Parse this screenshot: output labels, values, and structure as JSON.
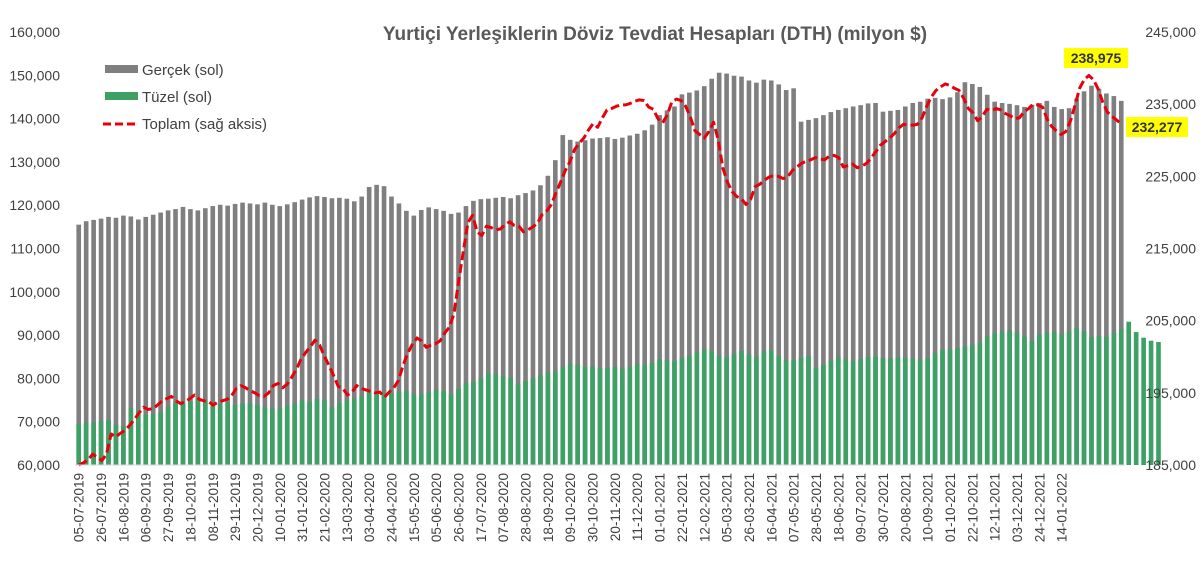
{
  "chart_data": {
    "type": "bar",
    "title": "Yurtiçi Yerleşiklerin Döviz Tevdiat Hesapları (DTH) (milyon $)",
    "y_left": {
      "ylim": [
        60000,
        160000
      ],
      "ticks": [
        "60,000",
        "70,000",
        "80,000",
        "90,000",
        "100,000",
        "110,000",
        "120,000",
        "130,000",
        "140,000",
        "150,000",
        "160,000"
      ]
    },
    "y_right": {
      "ylim": [
        185000,
        245000
      ],
      "ticks": [
        "185,000",
        "195,000",
        "205,000",
        "215,000",
        "225,000",
        "235,000",
        "245,000"
      ]
    },
    "x_tick_labels": [
      "05-07-2019",
      "26-07-2019",
      "16-08-2019",
      "06-09-2019",
      "27-09-2019",
      "18-10-2019",
      "08-11-2019",
      "29-11-2019",
      "20-12-2019",
      "10-01-2020",
      "31-01-2020",
      "21-02-2020",
      "13-03-2020",
      "03-04-2020",
      "24-04-2020",
      "15-05-2020",
      "05-06-2020",
      "26-06-2020",
      "17-07-2020",
      "07-08-2020",
      "28-08-2020",
      "18-09-2020",
      "09-10-2020",
      "30-10-2020",
      "20-11-2020",
      "11-12-2020",
      "01-01-2021",
      "22-01-2021",
      "12-02-2021",
      "05-03-2021",
      "26-03-2021",
      "16-04-2021",
      "07-05-2021",
      "28-05-2021",
      "18-06-2021",
      "09-07-2021",
      "30-07-2021",
      "20-08-2021",
      "10-09-2021",
      "01-10-2021",
      "22-10-2021",
      "12-11-2021",
      "03-12-2021",
      "24-12-2021",
      "14-01-2022"
    ],
    "x_tick_indices": [
      0,
      3,
      6,
      9,
      12,
      15,
      18,
      21,
      24,
      27,
      30,
      33,
      36,
      39,
      42,
      45,
      48,
      51,
      54,
      57,
      60,
      63,
      66,
      69,
      72,
      75,
      78,
      81,
      84,
      87,
      90,
      93,
      96,
      99,
      102,
      105,
      108,
      111,
      114,
      117,
      120,
      123,
      126,
      129,
      132
    ],
    "series": [
      {
        "name": "Gerçek (sol)",
        "axis": "left",
        "type": "bar",
        "color": "#7f7f7f",
        "values": [
          115500,
          116300,
          116600,
          116900,
          117300,
          117100,
          117600,
          117400,
          116700,
          117300,
          117800,
          118300,
          118800,
          119100,
          119600,
          119100,
          118800,
          119300,
          119800,
          120100,
          119900,
          120300,
          120600,
          120400,
          120200,
          120600,
          120100,
          119800,
          120200,
          120700,
          121300,
          121800,
          122100,
          121900,
          121600,
          121700,
          121500,
          120900,
          122000,
          124200,
          124700,
          124400,
          122000,
          120400,
          118700,
          117600,
          118900,
          119500,
          119100,
          118700,
          118000,
          118300,
          119800,
          121000,
          121400,
          121500,
          121700,
          121900,
          121600,
          122300,
          122800,
          123400,
          124600,
          126800,
          130400,
          136200,
          135100,
          134700,
          135000,
          135400,
          135500,
          135700,
          135300,
          135600,
          136100,
          136500,
          137300,
          138600,
          140800,
          141900,
          142800,
          145600,
          146000,
          146500,
          147500,
          149200,
          150600,
          150400,
          149900,
          149700,
          148800,
          148300,
          149000,
          148800,
          147900,
          146600,
          147000,
          139300,
          139700,
          140100,
          140800,
          141500,
          142000,
          142400,
          142800,
          143100,
          143500,
          143600,
          141600,
          141800,
          142000,
          142800,
          143600,
          143900,
          144600,
          144800,
          144500,
          144900,
          146100,
          148400,
          148000,
          147300,
          145500,
          143900,
          143600,
          143400,
          143100,
          142700,
          143200,
          143600,
          144100,
          142700,
          142200,
          142400,
          144600,
          146300,
          147600,
          146900,
          145800,
          145200,
          144100
        ]
      },
      {
        "name": "Tüzel (sol)",
        "axis": "left",
        "type": "bar",
        "color": "#3da065",
        "values": [
          69500,
          69700,
          69800,
          70100,
          70400,
          69300,
          69100,
          73100,
          72600,
          71600,
          71800,
          72200,
          73400,
          74300,
          74100,
          74700,
          75000,
          74900,
          74600,
          74100,
          74400,
          73900,
          74200,
          74300,
          73900,
          73300,
          73000,
          73100,
          73700,
          74200,
          74900,
          74600,
          75300,
          75000,
          73300,
          74300,
          74900,
          75300,
          75800,
          76800,
          76900,
          76600,
          76600,
          76900,
          77100,
          76300,
          76300,
          76900,
          77400,
          77100,
          76300,
          77600,
          78900,
          79200,
          80100,
          81200,
          80900,
          80500,
          80100,
          78600,
          79400,
          80000,
          80700,
          81400,
          81600,
          82600,
          83300,
          83100,
          82700,
          82700,
          82300,
          82500,
          82600,
          82200,
          82700,
          83300,
          83100,
          83600,
          84400,
          84200,
          84100,
          84700,
          85300,
          86000,
          86700,
          86300,
          85200,
          84900,
          85600,
          86400,
          85500,
          85100,
          86300,
          86500,
          85200,
          84200,
          84100,
          84800,
          85200,
          82300,
          83100,
          84100,
          84900,
          84400,
          84000,
          84500,
          84900,
          85000,
          84700,
          84600,
          84900,
          84700,
          84500,
          84300,
          84700,
          85800,
          86600,
          86700,
          87000,
          87400,
          87800,
          88300,
          89700,
          90400,
          90700,
          91100,
          90600,
          89600,
          88600,
          90100,
          90500,
          90700,
          90200,
          90700,
          91700,
          90900,
          89500,
          89800,
          89600,
          90500,
          91400,
          93100,
          90700,
          89400,
          88700,
          88400
        ]
      },
      {
        "name": "Toplam (sağ aksis)",
        "axis": "right",
        "type": "line",
        "color": "#e8000b",
        "values": [
          185000,
          185300,
          185700,
          186500,
          186100,
          185600,
          186500,
          189300,
          188900,
          189400,
          189800,
          190500,
          191300,
          192200,
          193000,
          192700,
          192800,
          193300,
          193900,
          194200,
          194500,
          193900,
          193500,
          193800,
          194200,
          194700,
          194100,
          193900,
          193800,
          193300,
          193700,
          193900,
          194100,
          194600,
          195600,
          196000,
          195700,
          195300,
          195000,
          194600,
          194500,
          195000,
          196000,
          196300,
          195700,
          196200,
          197200,
          198300,
          199700,
          200600,
          201400,
          202300,
          201600,
          200100,
          198800,
          197400,
          195900,
          195600,
          194700,
          195100,
          196000,
          195600,
          195400,
          195200,
          195000,
          195100,
          194400,
          195100,
          195700,
          196700,
          198800,
          200500,
          201700,
          202600,
          202200,
          201300,
          201600,
          201800,
          202200,
          203300,
          204100,
          206000,
          210500,
          214600,
          218600,
          219600,
          217300,
          216800,
          218100,
          217900,
          217600,
          217700,
          218300,
          218700,
          218200,
          218100,
          217300,
          217600,
          218000,
          218500,
          219700,
          220200,
          221100,
          222700,
          224200,
          225800,
          227000,
          228700,
          229600,
          230300,
          231400,
          232300,
          231800,
          233100,
          234200,
          234400,
          234700,
          234900,
          234900,
          235100,
          235400,
          235600,
          235500,
          234600,
          234300,
          233000,
          232400,
          233500,
          235300,
          235700,
          235500,
          234700,
          233200,
          231300,
          230800,
          230300,
          231200,
          232500,
          230100,
          226200,
          224200,
          222900,
          222200,
          221900,
          221100,
          221800,
          223600,
          223900,
          224500,
          224900,
          225100,
          225000,
          224700,
          224900,
          225800,
          226300,
          226800,
          227100,
          227300,
          227600,
          227400,
          227300,
          227800,
          227900,
          227600,
          226300,
          226500,
          226700,
          226200,
          226400,
          226800,
          227500,
          228400,
          229300,
          229800,
          230300,
          230900,
          231700,
          232200,
          232100,
          232100,
          232200,
          233100,
          234700,
          236000,
          236900,
          237400,
          237800,
          237600,
          237200,
          236900,
          235800,
          234400,
          233800,
          232700,
          233300,
          234300,
          234100,
          234400,
          234200,
          233700,
          233400,
          233000,
          233100,
          233900,
          234400,
          235000,
          234900,
          234600,
          232900,
          231900,
          231300,
          230800,
          231200,
          232600,
          234800,
          237200,
          238400,
          238975,
          238400,
          237100,
          235300,
          233900,
          233300,
          232800,
          232277
        ]
      }
    ],
    "annotations": [
      {
        "text": "238,975",
        "series": "Toplam (sağ aksis)",
        "value": 238975,
        "background": "#ffff00"
      },
      {
        "text": "232,277",
        "series": "Toplam (sağ aksis)",
        "value": 232277,
        "background": "#ffff00"
      }
    ],
    "legend": {
      "placement": "top-left",
      "entries": [
        "Gerçek (sol)",
        "Tüzel (sol)",
        "Toplam (sağ aksis)"
      ]
    },
    "grid": false
  }
}
